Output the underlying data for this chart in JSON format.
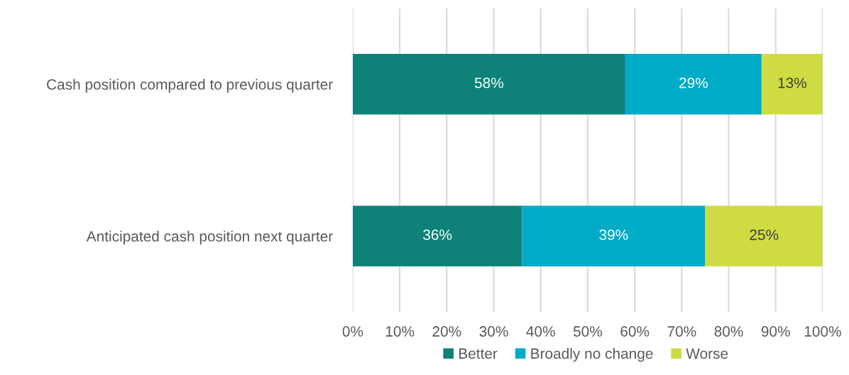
{
  "chart_data": {
    "type": "bar",
    "orientation": "horizontal",
    "stacked": true,
    "categories": [
      "Cash position compared to previous quarter",
      "Anticipated cash position next quarter"
    ],
    "series": [
      {
        "name": "Better",
        "color": "#0e8279",
        "values": [
          58,
          36
        ],
        "value_labels": [
          "58%",
          "36%"
        ]
      },
      {
        "name": "Broadly no change",
        "color": "#00abc7",
        "values": [
          29,
          39
        ],
        "value_labels": [
          "29%",
          "39%"
        ]
      },
      {
        "name": "Worse",
        "color": "#cfdb43",
        "values": [
          13,
          25
        ],
        "value_labels": [
          "13%",
          "25%"
        ]
      }
    ],
    "xlim": [
      0,
      100
    ],
    "xticks": [
      {
        "value": 0,
        "label": "0%"
      },
      {
        "value": 10,
        "label": "10%"
      },
      {
        "value": 20,
        "label": "20%"
      },
      {
        "value": 30,
        "label": "30%"
      },
      {
        "value": 40,
        "label": "40%"
      },
      {
        "value": 50,
        "label": "50%"
      },
      {
        "value": 60,
        "label": "60%"
      },
      {
        "value": 70,
        "label": "70%"
      },
      {
        "value": 80,
        "label": "80%"
      },
      {
        "value": 90,
        "label": "90%"
      },
      {
        "value": 100,
        "label": "100%"
      }
    ],
    "grid": "x",
    "legend": "bottom"
  }
}
